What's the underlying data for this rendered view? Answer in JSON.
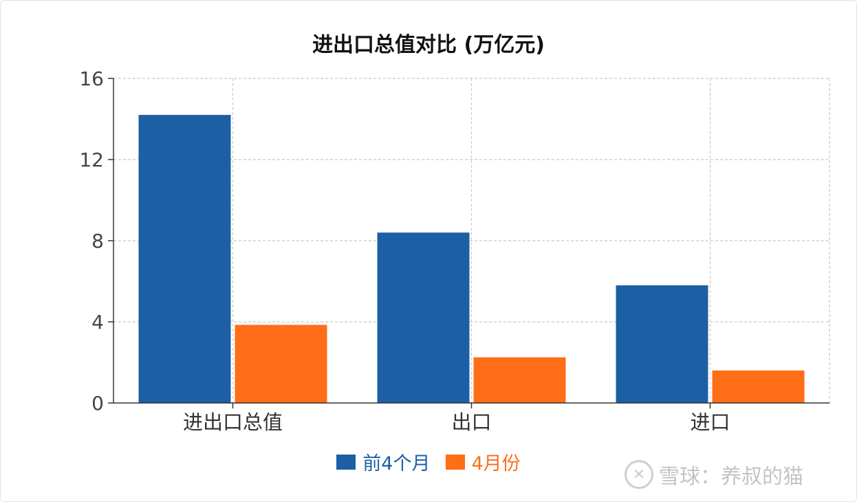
{
  "chart_data": {
    "type": "bar",
    "title": "进出口总值对比 (万亿元)",
    "categories": [
      "进出口总值",
      "出口",
      "进口"
    ],
    "series": [
      {
        "name": "前4个月",
        "values": [
          14.2,
          8.4,
          5.8
        ],
        "color": "#1c5fa5"
      },
      {
        "name": "4月份",
        "values": [
          3.85,
          2.25,
          1.6
        ],
        "color": "#ff6d17"
      }
    ],
    "ylim": [
      0,
      16
    ],
    "yticks": [
      "0",
      "4",
      "8",
      "12",
      "16"
    ],
    "grid": true,
    "legend_position": "bottom-center"
  },
  "watermark": {
    "logo_glyph": "✕",
    "text": "雪球：养叔的猫"
  }
}
